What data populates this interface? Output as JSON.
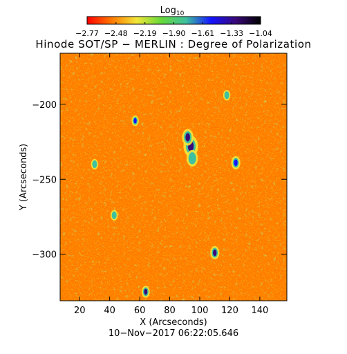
{
  "chart_data": {
    "type": "heatmap",
    "title": "Hinode SOT/SP − MERLIN : Degree of Polarization",
    "xlabel": "X (Arcseconds)",
    "ylabel": "Y (Arcseconds)",
    "timestamp": "10−Nov−2017 06:22:05.646",
    "xlim": [
      7,
      158
    ],
    "ylim": [
      -331,
      -166
    ],
    "xticks": [
      20,
      40,
      60,
      80,
      100,
      120,
      140
    ],
    "yticks": [
      -200,
      -250,
      -300
    ],
    "colorbar": {
      "label": "Log",
      "label_subscript": "10",
      "range": [
        -2.77,
        -1.04
      ],
      "ticks": [
        "−2.77",
        "−2.48",
        "−2.19",
        "−1.90",
        "−1.61",
        "−1.33",
        "−1.04"
      ],
      "colormap": [
        "#ff0000",
        "#ff7a00",
        "#f2e63a",
        "#66d93a",
        "#3fc0a0",
        "#1414ff",
        "#3a0878",
        "#000000"
      ]
    },
    "background_level": -2.62,
    "features": [
      {
        "x": 94,
        "y": -228,
        "level": -1.2,
        "size": 3.2
      },
      {
        "x": 92,
        "y": -222,
        "level": -1.3,
        "size": 2.5
      },
      {
        "x": 95,
        "y": -236,
        "level": -1.7,
        "size": 2.5
      },
      {
        "x": 64,
        "y": -325,
        "level": -1.3,
        "size": 1.8
      },
      {
        "x": 110,
        "y": -299,
        "level": -1.3,
        "size": 2.0
      },
      {
        "x": 124,
        "y": -239,
        "level": -1.6,
        "size": 2.0
      },
      {
        "x": 57,
        "y": -211,
        "level": -1.6,
        "size": 1.6
      },
      {
        "x": 43,
        "y": -274,
        "level": -1.8,
        "size": 1.6
      },
      {
        "x": 118,
        "y": -194,
        "level": -1.9,
        "size": 1.6
      },
      {
        "x": 30,
        "y": -240,
        "level": -1.9,
        "size": 1.6
      }
    ]
  }
}
